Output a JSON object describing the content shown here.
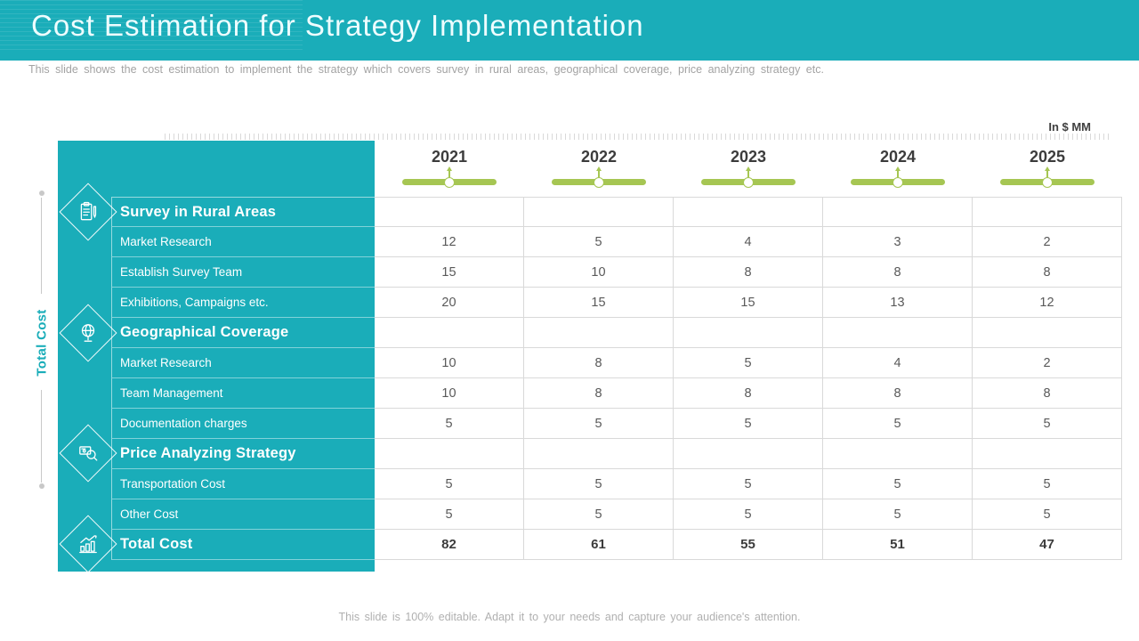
{
  "slide": {
    "title": "Cost Estimation for Strategy Implementation",
    "subtitle": "This slide shows the cost estimation to implement the strategy which covers survey in rural areas, geographical coverage, price analyzing strategy etc.",
    "unit_label": "In $ MM",
    "vertical_axis_label": "Total Cost",
    "footer": "This slide is 100% editable. Adapt it to your needs and capture your audience's attention."
  },
  "colors": {
    "teal": "#1aadb9",
    "green": "#a6c653",
    "dark_text": "#3c3c3c",
    "value_text": "#595959",
    "grid_border": "#d9d9d9"
  },
  "chart_data": {
    "type": "table",
    "title": "Cost Estimation for Strategy Implementation",
    "unit": "In $ MM",
    "years": [
      "2021",
      "2022",
      "2023",
      "2024",
      "2025"
    ],
    "rows": [
      {
        "label": "Survey in Rural Areas",
        "type": "section",
        "values": [
          "",
          "",
          "",
          "",
          ""
        ]
      },
      {
        "label": "Market Research",
        "type": "item",
        "values": [
          12,
          5,
          4,
          3,
          2
        ]
      },
      {
        "label": "Establish Survey Team",
        "type": "item",
        "values": [
          15,
          10,
          8,
          8,
          8
        ]
      },
      {
        "label": "Exhibitions, Campaigns etc.",
        "type": "item",
        "values": [
          20,
          15,
          15,
          13,
          12
        ]
      },
      {
        "label": "Geographical Coverage",
        "type": "section",
        "values": [
          "",
          "",
          "",
          "",
          ""
        ]
      },
      {
        "label": "Market Research",
        "type": "item",
        "values": [
          10,
          8,
          5,
          4,
          2
        ]
      },
      {
        "label": "Team Management",
        "type": "item",
        "values": [
          10,
          8,
          8,
          8,
          8
        ]
      },
      {
        "label": "Documentation charges",
        "type": "item",
        "values": [
          5,
          5,
          5,
          5,
          5
        ]
      },
      {
        "label": "Price Analyzing Strategy",
        "type": "section",
        "values": [
          "",
          "",
          "",
          "",
          ""
        ]
      },
      {
        "label": "Transportation Cost",
        "type": "item",
        "values": [
          5,
          5,
          5,
          5,
          5
        ]
      },
      {
        "label": "Other Cost",
        "type": "item",
        "values": [
          5,
          5,
          5,
          5,
          5
        ]
      },
      {
        "label": "Total Cost",
        "type": "total",
        "values": [
          82,
          61,
          55,
          51,
          47
        ]
      }
    ],
    "section_icons": [
      "survey-clipboard-icon",
      "globe-icon",
      "price-analysis-search-icon",
      "growth-bars-icon"
    ]
  }
}
